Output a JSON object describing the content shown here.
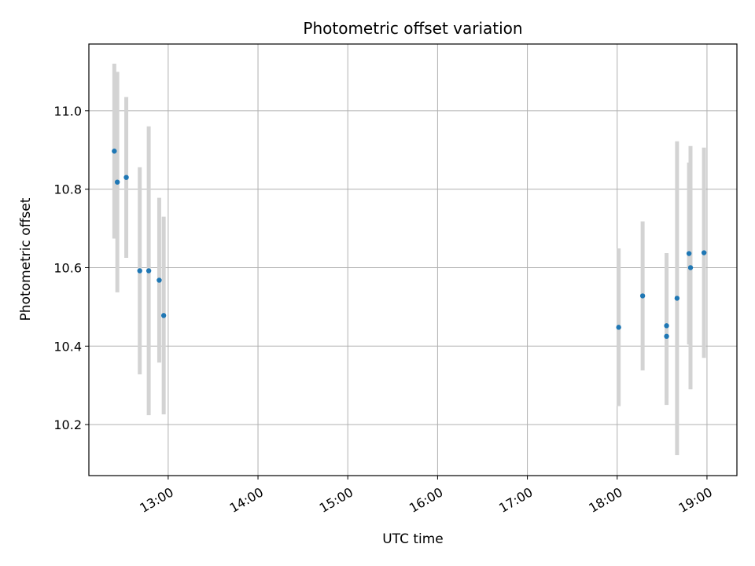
{
  "chart_data": {
    "type": "scatter",
    "title": "Photometric offset variation",
    "xlabel": "UTC time",
    "ylabel": "Photometric offset",
    "xlim": [
      "12:07",
      "19:20"
    ],
    "ylim": [
      10.07,
      11.17
    ],
    "grid": true,
    "xticks": [
      "13:00",
      "14:00",
      "15:00",
      "16:00",
      "17:00",
      "18:00",
      "19:00"
    ],
    "yticks": [
      10.2,
      10.4,
      10.6,
      10.8,
      11.0
    ],
    "colors": {
      "point": "#1f77b4",
      "errorbar": "#d3d3d3",
      "grid": "#b0b0b0"
    },
    "points": [
      {
        "x": "12:24",
        "y": 10.897,
        "yerr": 0.223
      },
      {
        "x": "12:26",
        "y": 10.818,
        "yerr": 0.281
      },
      {
        "x": "12:32",
        "y": 10.83,
        "yerr": 0.205
      },
      {
        "x": "12:41",
        "y": 10.592,
        "yerr": 0.264
      },
      {
        "x": "12:47",
        "y": 10.592,
        "yerr": 0.368
      },
      {
        "x": "12:54",
        "y": 10.568,
        "yerr": 0.21
      },
      {
        "x": "12:57",
        "y": 10.478,
        "yerr": 0.252
      },
      {
        "x": "18:01",
        "y": 10.448,
        "yerr": 0.201
      },
      {
        "x": "18:17",
        "y": 10.528,
        "yerr": 0.19
      },
      {
        "x": "18:33",
        "y": 10.452,
        "yerr": 0.185
      },
      {
        "x": "18:33",
        "y": 10.425,
        "yerr": 0.175
      },
      {
        "x": "18:40",
        "y": 10.522,
        "yerr": 0.4
      },
      {
        "x": "18:48",
        "y": 10.636,
        "yerr": 0.232
      },
      {
        "x": "18:49",
        "y": 10.6,
        "yerr": 0.31
      },
      {
        "x": "18:58",
        "y": 10.638,
        "yerr": 0.268
      }
    ]
  }
}
